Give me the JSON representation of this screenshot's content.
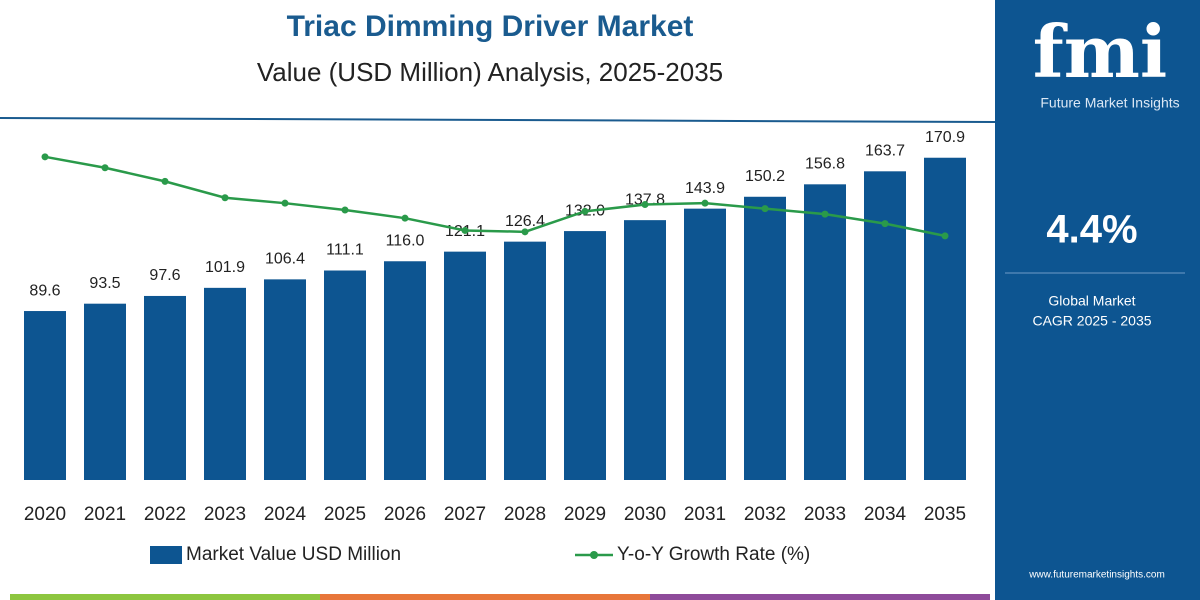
{
  "chart_data": {
    "type": "bar",
    "title": "Triac Dimming Driver Market",
    "subtitle": "Value (USD Million) Analysis, 2025-2035",
    "categories": [
      "2020",
      "2021",
      "2022",
      "2023",
      "2024",
      "2025",
      "2026",
      "2027",
      "2028",
      "2029",
      "2030",
      "2031",
      "2032",
      "2033",
      "2034",
      "2035"
    ],
    "series": [
      {
        "name": "Market Value USD Million",
        "type": "bar",
        "color": "#0d5591",
        "values": [
          89.6,
          93.5,
          97.6,
          101.9,
          106.4,
          111.1,
          116.0,
          121.1,
          126.4,
          132.0,
          137.8,
          143.9,
          150.2,
          156.8,
          163.7,
          170.9
        ],
        "value_labels": [
          "89.6",
          "93.5",
          "97.6",
          "101.9",
          "106.4",
          "111.1",
          "116.0",
          "121.1",
          "126.4",
          "132.0",
          "137.8",
          "143.9",
          "150.2",
          "156.8",
          "163.7",
          "170.9"
        ]
      },
      {
        "name": "Y-o-Y Growth Rate (%)",
        "type": "line",
        "axis": "y2",
        "color": "#2a9a4a",
        "values": [
          4.7,
          4.62,
          4.52,
          4.4,
          4.36,
          4.31,
          4.25,
          4.16,
          4.15,
          4.3,
          4.35,
          4.36,
          4.32,
          4.28,
          4.21,
          4.12
        ]
      }
    ],
    "ylim": [
      0,
      175
    ],
    "y2lim": [
      2.33,
      4.75
    ],
    "grid": false
  },
  "sidebar": {
    "brand": "fmi",
    "brand_sub": "Future Market Insights",
    "cagr": "4.4%",
    "cagr_label_1": "Global Market",
    "cagr_label_2": "CAGR 2025 - 2035",
    "website": "www.futuremarketinsights.com"
  }
}
